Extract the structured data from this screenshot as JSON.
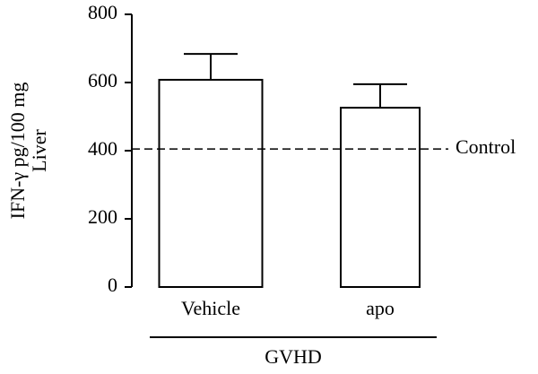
{
  "chart_data": {
    "type": "bar",
    "y_label": [
      "IFN-γ pg/100 mg",
      "Liver"
    ],
    "categories": [
      "Vehicle",
      "apo"
    ],
    "values": [
      608,
      526
    ],
    "errors": [
      76,
      69
    ],
    "color": "#ffffff",
    "ylim": [
      0,
      800
    ],
    "yticks": [
      0,
      200,
      400,
      600,
      800
    ],
    "reference_line": {
      "value": 405,
      "label": "Control"
    },
    "group_label": "GVHD"
  }
}
